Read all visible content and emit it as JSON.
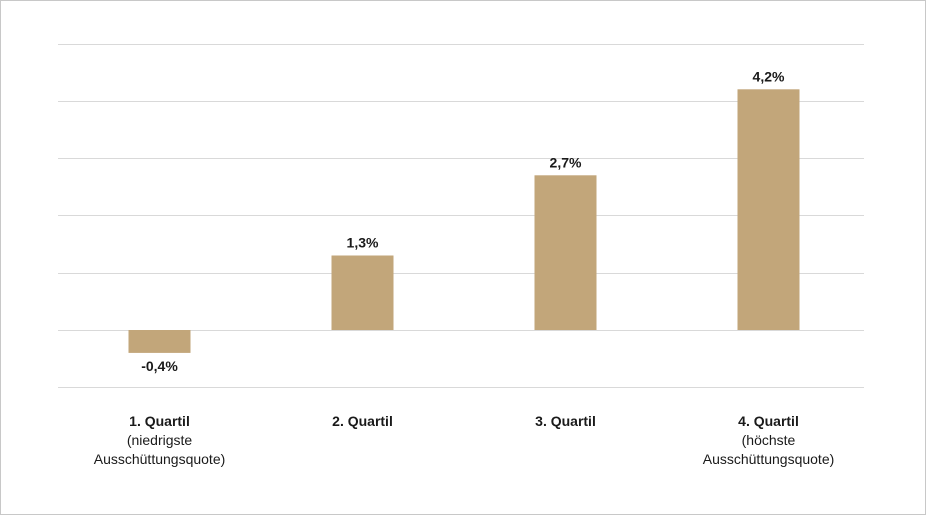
{
  "chart_data": {
    "type": "bar",
    "categories": [
      "1. Quartil",
      "2. Quartil",
      "3. Quartil",
      "4. Quartil"
    ],
    "category_sublabels": [
      [
        "(niedrigste",
        "Ausschüttungsquote)"
      ],
      [],
      [],
      [
        "(höchste",
        "Ausschüttungsquote)"
      ]
    ],
    "values": [
      -0.4,
      1.3,
      2.7,
      4.2
    ],
    "value_labels": [
      "-0,4%",
      "1,3%",
      "2,7%",
      "4,2%"
    ],
    "title": "",
    "xlabel": "",
    "ylabel": "",
    "ylim": [
      -1,
      5
    ],
    "grid": true,
    "legend": "none",
    "bar_color": "#c2a67a",
    "grid_color": "#d9d9d9"
  }
}
